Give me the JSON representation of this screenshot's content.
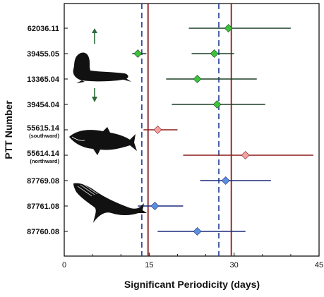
{
  "chart_data": {
    "type": "scatter",
    "title": "",
    "xlabel": "Significant Periodicity (days)",
    "ylabel": "PTT Number",
    "xlim": [
      0,
      45
    ],
    "xticks": [
      "0",
      "15",
      "30",
      "45"
    ],
    "categories": [
      {
        "id": "62036.11",
        "sub": ""
      },
      {
        "id": "39455.05",
        "sub": ""
      },
      {
        "id": "13365.04",
        "sub": ""
      },
      {
        "id": "39454.04",
        "sub": ""
      },
      {
        "id": "55615.14",
        "sub": "(southward)"
      },
      {
        "id": "55614.14",
        "sub": "(northward)"
      },
      {
        "id": "87769.08",
        "sub": ""
      },
      {
        "id": "87761.08",
        "sub": ""
      },
      {
        "id": "87760.08",
        "sub": ""
      }
    ],
    "points": [
      {
        "row": 0,
        "x": 29.0,
        "low": 22.0,
        "high": 40.0,
        "group": "seal"
      },
      {
        "row": 1,
        "x": 13.0,
        "low": 12.0,
        "high": 14.5,
        "group": "seal"
      },
      {
        "row": 1,
        "x": 26.5,
        "low": 22.5,
        "high": 30.0,
        "group": "seal"
      },
      {
        "row": 2,
        "x": 23.5,
        "low": 18.0,
        "high": 34.0,
        "group": "seal"
      },
      {
        "row": 3,
        "x": 27.0,
        "low": 19.0,
        "high": 35.5,
        "group": "seal"
      },
      {
        "row": 4,
        "x": 16.5,
        "low": 14.0,
        "high": 20.0,
        "group": "shark"
      },
      {
        "row": 5,
        "x": 32.0,
        "low": 21.0,
        "high": 44.0,
        "group": "shark"
      },
      {
        "row": 6,
        "x": 28.5,
        "low": 24.0,
        "high": 36.5,
        "group": "whale"
      },
      {
        "row": 7,
        "x": 16.0,
        "low": 13.0,
        "high": 21.0,
        "group": "whale"
      },
      {
        "row": 8,
        "x": 23.5,
        "low": 16.5,
        "high": 32.0,
        "group": "whale"
      }
    ],
    "reference_lines": [
      {
        "x": 13.7,
        "style": "dashed",
        "color": "#1f3a8f"
      },
      {
        "x": 27.3,
        "style": "dashed",
        "color": "#1f3a8f"
      },
      {
        "x": 14.8,
        "style": "solid",
        "color": "#8b1a1a"
      },
      {
        "x": 29.5,
        "style": "solid",
        "color": "#8b1a1a"
      }
    ],
    "group_colors": {
      "seal": {
        "marker": "#3cc43c",
        "line": "#1b3f26"
      },
      "shark": {
        "marker": "#f4a3a3",
        "line": "#8b1a1a"
      },
      "whale": {
        "marker": "#5b8fe0",
        "line": "#1c2a7a"
      }
    },
    "grid": false,
    "legend": "none"
  },
  "icons": {
    "seal": "elephant-seal-icon",
    "shark": "shark-icon",
    "whale": "humpback-whale-icon",
    "arrow_up": "arrow-up-icon",
    "arrow_down": "arrow-down-icon",
    "arrow_color": "#2f6a3b"
  }
}
